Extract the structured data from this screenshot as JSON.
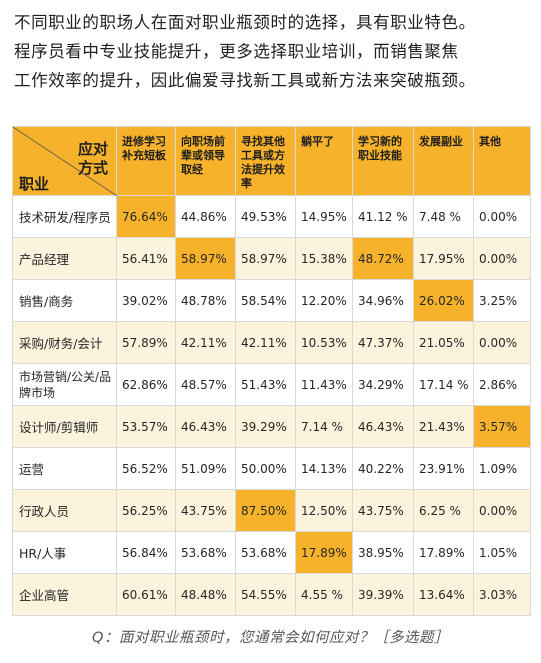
{
  "intro": [
    "不同职业的职场人在面对职业瓶颈时的选择，具有职业特色。",
    "程序员看中专业技能提升，更多选择职业培训，而销售聚焦",
    "工作效率的提升，因此偏爱寻找新工具或新方法来突破瓶颈。"
  ],
  "table": {
    "corner_top_1": "应对",
    "corner_top_2": "方式",
    "corner_bottom": "职业",
    "headers": [
      [
        "进修学习",
        "补充短板"
      ],
      [
        "向职场前",
        "辈或领导",
        "取经"
      ],
      [
        "寻找其他",
        "工具或方",
        "法提升效",
        "率"
      ],
      [
        "躺平了"
      ],
      [
        "学习新的",
        "职业技能"
      ],
      [
        "发展副业"
      ],
      [
        "其他"
      ]
    ],
    "rows": [
      {
        "label": "技术研发/程序员",
        "values": [
          "76.64%",
          "44.86%",
          "49.53%",
          "14.95%",
          "41.12 %",
          "7.48 %",
          "0.00%"
        ]
      },
      {
        "label": "产品经理",
        "values": [
          "56.41%",
          "58.97%",
          "58.97%",
          "15.38%",
          "48.72%",
          "17.95%",
          "0.00%"
        ]
      },
      {
        "label": "销售/商务",
        "values": [
          "39.02%",
          "48.78%",
          "58.54%",
          "12.20%",
          "34.96%",
          "26.02%",
          "3.25%"
        ]
      },
      {
        "label": "采购/财务/会计",
        "values": [
          "57.89%",
          "42.11%",
          "42.11%",
          "10.53%",
          "47.37%",
          "21.05%",
          "0.00%"
        ]
      },
      {
        "label": "市场营销/公关/品牌市场",
        "values": [
          "62.86%",
          "48.57%",
          "51.43%",
          "11.43%",
          "34.29%",
          "17.14 %",
          "2.86%"
        ]
      },
      {
        "label": "设计师/剪辑师",
        "values": [
          "53.57%",
          "46.43%",
          "39.29%",
          "7.14 %",
          "46.43%",
          "21.43%",
          "3.57%"
        ]
      },
      {
        "label": "运营",
        "values": [
          "56.52%",
          "51.09%",
          "50.00%",
          "14.13%",
          "40.22%",
          "23.91%",
          "1.09%"
        ]
      },
      {
        "label": "行政人员",
        "values": [
          "56.25%",
          "43.75%",
          "87.50%",
          "12.50%",
          "43.75%",
          "6.25 %",
          "0.00%"
        ]
      },
      {
        "label": "HR/人事",
        "values": [
          "56.84%",
          "53.68%",
          "53.68%",
          "17.89%",
          "38.95%",
          "17.89%",
          "1.05%"
        ]
      },
      {
        "label": "企业高管",
        "values": [
          "60.61%",
          "48.48%",
          "54.55%",
          "4.55 %",
          "39.39%",
          "13.64%",
          "3.03%"
        ]
      }
    ],
    "highlight_color": "#f7b22b"
  },
  "question": "Q：面对职业瓶颈时，您通常会如何应对？［多选题］"
}
